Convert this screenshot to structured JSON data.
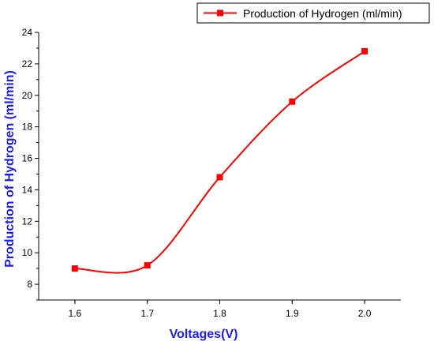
{
  "chart_data": {
    "type": "line",
    "x": [
      1.6,
      1.7,
      1.8,
      1.9,
      2.0
    ],
    "series": [
      {
        "name": "Production of Hydrogen (ml/min)",
        "values": [
          9.0,
          9.2,
          14.8,
          19.6,
          22.8
        ]
      }
    ],
    "title": "",
    "xlabel": "Voltages(V)",
    "ylabel": "Production of Hydrogen (ml/min)",
    "xlim": [
      1.55,
      2.05
    ],
    "ylim": [
      7,
      24
    ],
    "xticks": [
      "1.6",
      "1.7",
      "1.8",
      "1.9",
      "2.0"
    ],
    "yticks": [
      "8",
      "10",
      "12",
      "14",
      "16",
      "18",
      "20",
      "22",
      "24"
    ],
    "grid": false,
    "legend_position": "top-right",
    "colors": {
      "series": "#ff0000",
      "axis_title": "#1a1aff",
      "axes": "#000000"
    },
    "marker": "square",
    "curve": "smooth"
  }
}
